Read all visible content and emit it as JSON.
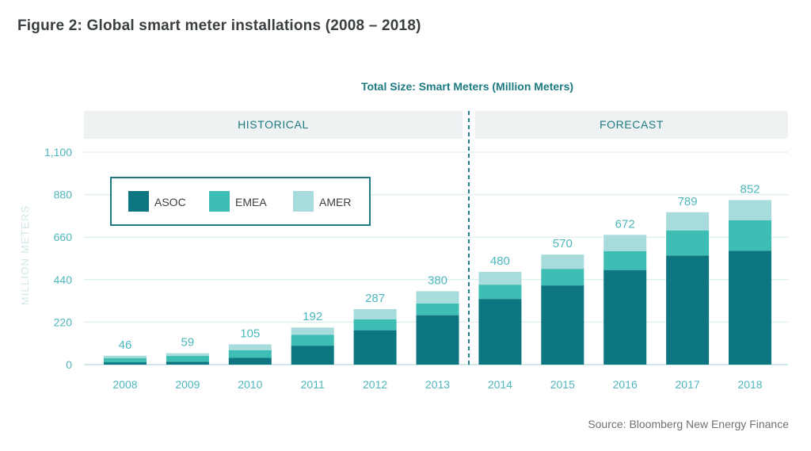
{
  "title": "Figure 2: Global smart meter installations (2008 – 2018)",
  "source": "Source: Bloomberg New Energy Finance",
  "colors": {
    "ASOC": "#0d7680",
    "EMEA": "#3dbdb3",
    "AMER": "#a8dcdc",
    "band": "#eef2f3",
    "grid": "#d4ecec",
    "divider": "#1d7a82"
  },
  "chart_data": {
    "type": "bar",
    "stacked": true,
    "subtitle": "Total Size: Smart Meters (Million Meters)",
    "ylabel": "MILLION METERS",
    "ylim": [
      0,
      1100
    ],
    "yticks": [
      0,
      220,
      440,
      660,
      880,
      1100
    ],
    "ytick_labels": [
      "0",
      "220",
      "440",
      "660",
      "880",
      "1,100"
    ],
    "grid": true,
    "legend_position": "top-left",
    "sections": [
      {
        "label": "HISTORICAL",
        "categories": [
          "2008",
          "2009",
          "2010",
          "2011",
          "2012",
          "2013"
        ]
      },
      {
        "label": "FORECAST",
        "categories": [
          "2014",
          "2015",
          "2016",
          "2017",
          "2018"
        ]
      }
    ],
    "categories": [
      "2008",
      "2009",
      "2010",
      "2011",
      "2012",
      "2013",
      "2014",
      "2015",
      "2016",
      "2017",
      "2018"
    ],
    "series": [
      {
        "name": "ASOC",
        "values": [
          12,
          15,
          35,
          98,
          178,
          256,
          340,
          410,
          490,
          565,
          590
        ]
      },
      {
        "name": "EMEA",
        "values": [
          22,
          30,
          40,
          56,
          56,
          61,
          74,
          86,
          97,
          130,
          157
        ]
      },
      {
        "name": "AMER",
        "values": [
          12,
          14,
          30,
          38,
          53,
          63,
          66,
          74,
          85,
          94,
          105
        ]
      }
    ],
    "totals": [
      "46",
      "59",
      "105",
      "192",
      "287",
      "380",
      "480",
      "570",
      "672",
      "789",
      "852"
    ]
  }
}
